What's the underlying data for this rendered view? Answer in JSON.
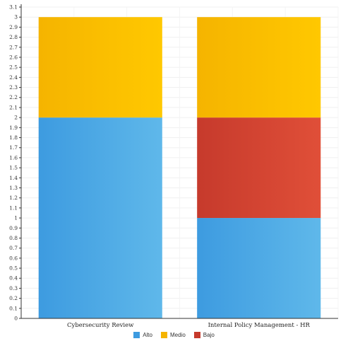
{
  "chart_data": {
    "type": "bar",
    "stacked": true,
    "categories": [
      "Cybersecurity Review",
      "Internal Policy Management - HR"
    ],
    "series": [
      {
        "name": "Alto",
        "values": [
          2,
          1
        ],
        "color": "#3d9be0",
        "color_light": "#5fb8ea"
      },
      {
        "name": "Bajo",
        "values": [
          0,
          1
        ],
        "color": "#c63a2c",
        "color_light": "#e04f38"
      },
      {
        "name": "Medio",
        "values": [
          1,
          1
        ],
        "color": "#f5b400",
        "color_light": "#ffc800"
      }
    ],
    "y_ticks": [
      "0",
      "0.1",
      "0.2",
      "0.3",
      "0.4",
      "0.5",
      "0.6",
      "0.7",
      "0.8",
      "0.9",
      "1",
      "1.1",
      "1.2",
      "1.3",
      "1.4",
      "1.5",
      "1.6",
      "1.7",
      "1.8",
      "1.9",
      "2",
      "2.1",
      "2.2",
      "2.3",
      "2.4",
      "2.5",
      "2.6",
      "2.7",
      "2.8",
      "2.9",
      "3",
      "3.1"
    ],
    "ylim": [
      0,
      3.1
    ],
    "grid": true,
    "legend_position": "bottom-center",
    "legend": [
      {
        "label": "Alto",
        "color": "#3d9be0"
      },
      {
        "label": "Medio",
        "color": "#f5b400"
      },
      {
        "label": "Bajo",
        "color": "#c63a2c"
      }
    ]
  }
}
